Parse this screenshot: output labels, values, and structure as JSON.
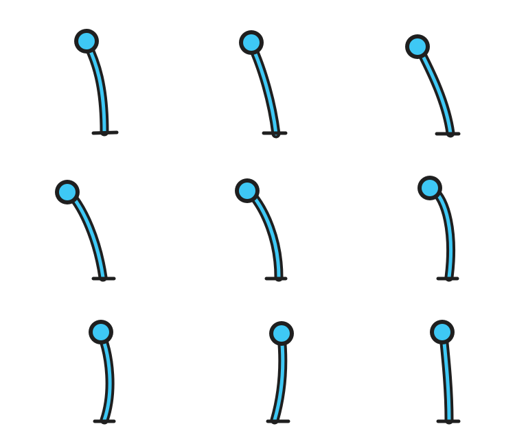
{
  "sprite_sheet": {
    "rows": 3,
    "columns": 3,
    "frame_count": 9,
    "colors": {
      "background": "#ffffff",
      "body": "#3ec8f5",
      "outline": "#1f1f1f"
    },
    "frames": [
      {
        "icon": "bent-stalk-sprite",
        "pose": "lean-left"
      },
      {
        "icon": "bent-stalk-sprite",
        "pose": "lean-left"
      },
      {
        "icon": "bent-stalk-sprite",
        "pose": "lean-left"
      },
      {
        "icon": "bent-stalk-sprite",
        "pose": "lean-left-far"
      },
      {
        "icon": "bent-stalk-sprite",
        "pose": "lean-left-far"
      },
      {
        "icon": "bent-stalk-sprite",
        "pose": "lean-left-slight"
      },
      {
        "icon": "bent-stalk-sprite",
        "pose": "upright-curve"
      },
      {
        "icon": "bent-stalk-sprite",
        "pose": "upright-lean-right"
      },
      {
        "icon": "bent-stalk-sprite",
        "pose": "upright"
      }
    ]
  }
}
